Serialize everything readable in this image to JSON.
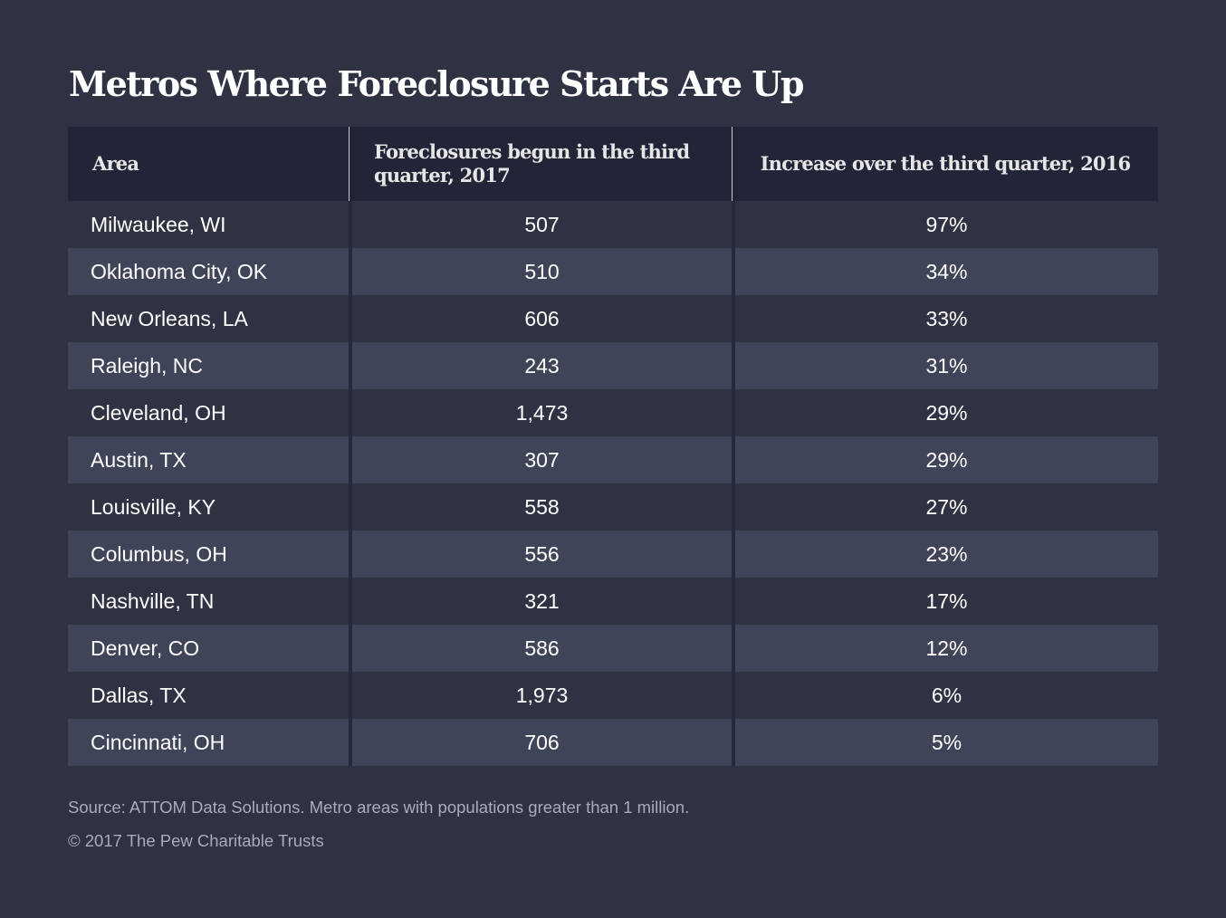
{
  "chart_data": {
    "type": "table",
    "title": "Metros Where Foreclosure Starts Are Up",
    "columns": [
      "Area",
      "Foreclosures begun in the third quarter, 2017",
      "Increase over the third quarter, 2016"
    ],
    "rows": [
      {
        "area": "Milwaukee, WI",
        "foreclosures": "507",
        "increase": "97%"
      },
      {
        "area": "Oklahoma City, OK",
        "foreclosures": "510",
        "increase": "34%"
      },
      {
        "area": "New Orleans, LA",
        "foreclosures": "606",
        "increase": "33%"
      },
      {
        "area": "Raleigh, NC",
        "foreclosures": "243",
        "increase": "31%"
      },
      {
        "area": "Cleveland, OH",
        "foreclosures": "1,473",
        "increase": "29%"
      },
      {
        "area": "Austin, TX",
        "foreclosures": "307",
        "increase": "29%"
      },
      {
        "area": "Louisville, KY",
        "foreclosures": "558",
        "increase": "27%"
      },
      {
        "area": "Columbus, OH",
        "foreclosures": "556",
        "increase": "23%"
      },
      {
        "area": "Nashville, TN",
        "foreclosures": "321",
        "increase": "17%"
      },
      {
        "area": "Denver, CO",
        "foreclosures": "586",
        "increase": "12%"
      },
      {
        "area": "Dallas, TX",
        "foreclosures": "1,973",
        "increase": "6%"
      },
      {
        "area": "Cincinnati, OH",
        "foreclosures": "706",
        "increase": "5%"
      }
    ],
    "source": "Source: ATTOM Data Solutions. Metro areas with populations greater than 1 million.",
    "copyright": "© 2017 The Pew Charitable Trusts"
  },
  "colors": {
    "background": "#2f3243",
    "header": "#222537",
    "stripe": "#404458"
  }
}
